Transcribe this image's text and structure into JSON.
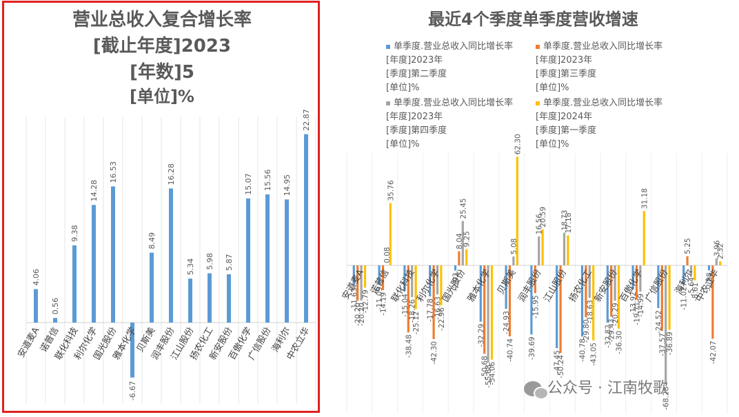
{
  "left": {
    "title_lines": [
      "营业总收入复合增长率",
      "[截止年度]2023",
      "[年数]5",
      "[单位]%"
    ],
    "chart_data": {
      "type": "bar",
      "categories": [
        "安道麦A",
        "诺普信",
        "联化科技",
        "利尔化学",
        "国光股份",
        "雅本化学",
        "贝斯美",
        "润丰股份",
        "江山股份",
        "扬农化工",
        "新安股份",
        "百傲化学",
        "广信股份",
        "海利尔",
        "中农立华"
      ],
      "values": [
        4.06,
        0.56,
        9.38,
        14.28,
        16.53,
        -6.67,
        8.49,
        16.28,
        5.34,
        5.98,
        5.87,
        15.07,
        15.56,
        14.95,
        22.87
      ],
      "colors": [
        "#5b9bd5"
      ]
    }
  },
  "right": {
    "title": "最近4个季度单季度营收增速",
    "legend": [
      {
        "lines": [
          "单季度.营业总收入同比增长率",
          "[年度]2023年",
          "[季度]第二季度",
          "[单位]%"
        ],
        "color": "#5b9bd5"
      },
      {
        "lines": [
          "单季度.营业总收入同比增长率",
          "[年度]2023年",
          "[季度]第三季度",
          "[单位]%"
        ],
        "color": "#ed7d31"
      },
      {
        "lines": [
          "单季度.营业总收入同比增长率",
          "[年度]2023年",
          "[季度]第四季度",
          "[单位]%"
        ],
        "color": "#a5a5a5"
      },
      {
        "lines": [
          "单季度.营业总收入同比增长率",
          "[年度]2024年",
          "[季度]第一季度",
          "[单位]%"
        ],
        "color": "#ffc000"
      }
    ],
    "chart_data": {
      "type": "bar",
      "categories": [
        "安道麦A",
        "诺普信",
        "联化科技",
        "利尔化学",
        "国光股份",
        "雅本化学",
        "贝斯美",
        "润丰股份",
        "江山股份",
        "扬农化工",
        "新安股份",
        "百傲化学",
        "广信股份",
        "海利尔",
        "中农立华"
      ],
      "series": [
        {
          "name": "单季度.营业总收入同比增长率 2023年第二季度",
          "color": "#5b9bd5",
          "values": [
            -11.63,
            -11.09,
            -15.04,
            -17.78,
            -2.93,
            -32.29,
            -24.93,
            -39.69,
            -47.45,
            -40.78,
            -32.82,
            -13.92,
            -24.52,
            -11.02,
            -2.88
          ]
        },
        {
          "name": "单季度.营业总收入同比增长率 2023年第三季度",
          "color": "#ed7d31",
          "values": [
            -20.2,
            -14.19,
            -38.48,
            -42.3,
            8.04,
            -50.68,
            -40.74,
            -15.95,
            -50.24,
            -29.8,
            -29.43,
            -19.71,
            -37.57,
            5.25,
            -42.07
          ]
        },
        {
          "name": "单季度.营业总收入同比增长率 2023年第四季度",
          "color": "#a5a5a5",
          "values": [
            -20.2,
            0.08,
            -18.26,
            -16.63,
            25.45,
            -55.68,
            5.08,
            16.56,
            18.73,
            -18.63,
            -20.29,
            -14.99,
            -68.28,
            -5.64,
            3.96
          ]
        },
        {
          "name": "单季度.营业总收入同比增长率 2024年第一季度",
          "color": "#ffc000",
          "values": [
            -12.79,
            35.76,
            -25.12,
            -22.96,
            9.25,
            -54.06,
            62.3,
            20.59,
            17.18,
            -43.05,
            -36.3,
            31.18,
            -36.89,
            -8.61,
            2.32
          ]
        }
      ],
      "ylim": [
        -70,
        70
      ]
    }
  },
  "watermark": "公众号 · 江南牧歌"
}
